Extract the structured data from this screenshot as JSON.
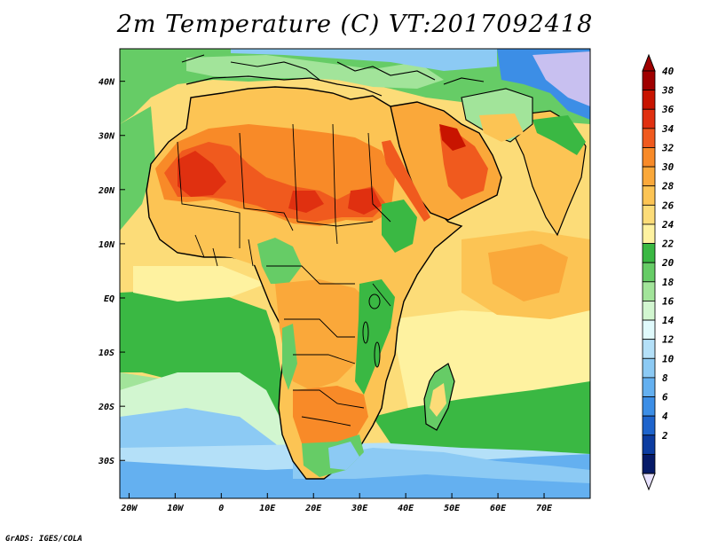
{
  "title": "2m Temperature (C) VT:2017092418",
  "footer": "GrADS: IGES/COLA",
  "map": {
    "lon_range": [
      -22,
      80
    ],
    "lat_range": [
      -37,
      46
    ],
    "x_ticks": [
      {
        "lon": -20,
        "label": "20W"
      },
      {
        "lon": -10,
        "label": "10W"
      },
      {
        "lon": 0,
        "label": "0"
      },
      {
        "lon": 10,
        "label": "10E"
      },
      {
        "lon": 20,
        "label": "20E"
      },
      {
        "lon": 30,
        "label": "30E"
      },
      {
        "lon": 40,
        "label": "40E"
      },
      {
        "lon": 50,
        "label": "50E"
      },
      {
        "lon": 60,
        "label": "60E"
      },
      {
        "lon": 70,
        "label": "70E"
      }
    ],
    "y_ticks": [
      {
        "lat": 40,
        "label": "40N"
      },
      {
        "lat": 30,
        "label": "30N"
      },
      {
        "lat": 20,
        "label": "20N"
      },
      {
        "lat": 10,
        "label": "10N"
      },
      {
        "lat": 0,
        "label": "EQ"
      },
      {
        "lat": -10,
        "label": "10S"
      },
      {
        "lat": -20,
        "label": "20S"
      },
      {
        "lat": -30,
        "label": "30S"
      }
    ]
  },
  "colorbar": {
    "levels": [
      "40",
      "38",
      "36",
      "34",
      "32",
      "30",
      "28",
      "26",
      "24",
      "22",
      "20",
      "18",
      "16",
      "14",
      "12",
      "10",
      "8",
      "6",
      "4",
      "2"
    ],
    "colors": [
      "#a00000",
      "#c81400",
      "#e03010",
      "#f05a1e",
      "#f88a28",
      "#faa83a",
      "#fcc454",
      "#fcdc78",
      "#fef2a0",
      "#3ab843",
      "#66cc66",
      "#a2e49a",
      "#d2f6d0",
      "#e0fafc",
      "#b4e0f8",
      "#8ccaf4",
      "#64b0f0",
      "#3c8ee6",
      "#1e64cc",
      "#0c3ca0",
      "#061a68"
    ],
    "top_arrow_color": "#a00000",
    "bottom_arrow_color": "#e8e2ff"
  }
}
